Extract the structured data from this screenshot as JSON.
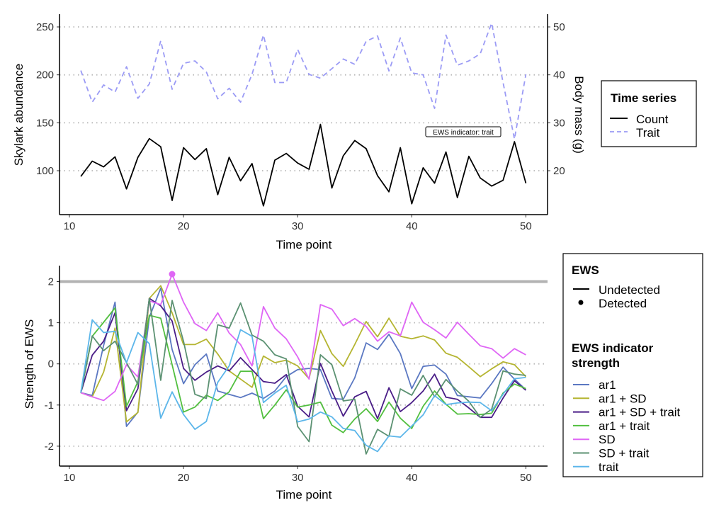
{
  "chart_data": [
    {
      "type": "line",
      "xlabel": "Time point",
      "ylabel": "Skylark abundance",
      "y2label": "Body mass (g)",
      "xlim": [
        10,
        52
      ],
      "ylim": [
        50,
        262
      ],
      "y2lim": [
        13,
        52
      ],
      "xticks": [
        10,
        20,
        30,
        40,
        50
      ],
      "yticks": [
        100,
        150,
        200,
        250
      ],
      "y2ticks": [
        20,
        30,
        40,
        50
      ],
      "grid": "horizontal dotted",
      "legend": {
        "title": "Time series",
        "position": "right",
        "items": [
          "Count",
          "Trait"
        ]
      },
      "annotation": "EWS indicator: trait",
      "x": [
        11,
        12,
        13,
        14,
        15,
        16,
        17,
        18,
        19,
        20,
        21,
        22,
        23,
        24,
        25,
        26,
        27,
        28,
        29,
        30,
        31,
        32,
        33,
        34,
        35,
        36,
        37,
        38,
        39,
        40,
        41,
        42,
        43,
        44,
        45,
        46,
        47,
        48,
        49,
        50
      ],
      "series": [
        {
          "name": "Count",
          "axis": "left",
          "color": "#000000",
          "dash": "solid",
          "values": [
            94,
            110,
            104,
            114.5,
            81,
            114,
            133.5,
            125,
            69,
            124,
            111.6,
            123,
            75,
            114,
            89.4,
            107.4,
            63.3,
            111,
            118,
            108,
            101.5,
            148.3,
            82,
            115.5,
            131.5,
            123,
            94.8,
            78,
            124,
            65.5,
            103,
            87,
            119.5,
            72,
            115,
            92.4,
            84,
            90,
            130.3,
            87
          ]
        },
        {
          "name": "Trait",
          "axis": "right",
          "color": "#9b9bf5",
          "dash": "dashed",
          "values": [
            40.9,
            34.3,
            37.9,
            36.4,
            41.7,
            35.1,
            38.1,
            47.1,
            37,
            42.4,
            42.9,
            40.6,
            35,
            37.2,
            34.3,
            40.1,
            48.3,
            38.4,
            38.4,
            45.3,
            40.1,
            39.3,
            41.3,
            43.3,
            42.2,
            47,
            48.1,
            40.8,
            47.7,
            40.4,
            40,
            33,
            48.3,
            42,
            42.9,
            44.4,
            50.8,
            38.4,
            26.6,
            40.1
          ]
        }
      ]
    },
    {
      "type": "line",
      "xlabel": "Time point",
      "ylabel": "Strength of EWS",
      "xlim": [
        10,
        52
      ],
      "ylim": [
        -2.45,
        2.38
      ],
      "xticks": [
        10,
        20,
        30,
        40,
        50
      ],
      "yticks": [
        -2,
        -1,
        0,
        1,
        2
      ],
      "grid": "horizontal dotted",
      "threshold": 2,
      "threshold_color": "#b3b3b3",
      "legend": {
        "position": "right",
        "ews_title": "EWS",
        "ews_items": [
          "Undetected",
          "Detected"
        ],
        "strength_title_lines": [
          "EWS indicator",
          "strength"
        ]
      },
      "x": [
        11,
        12,
        13,
        14,
        15,
        16,
        17,
        18,
        19,
        20,
        21,
        22,
        23,
        24,
        25,
        26,
        27,
        28,
        29,
        30,
        31,
        32,
        33,
        34,
        35,
        36,
        37,
        38,
        39,
        40,
        41,
        42,
        43,
        44,
        45,
        46,
        47,
        48,
        49,
        50
      ],
      "detected": [
        {
          "series": "SD",
          "x": 19,
          "y": 2.18
        }
      ],
      "series": [
        {
          "name": "ar1",
          "color": "#5b78c2",
          "values": [
            -0.7,
            -0.77,
            0.45,
            1.5,
            -1.52,
            -1.17,
            1.13,
            1.84,
            0.35,
            -0.48,
            -0.02,
            0.24,
            -0.66,
            -0.74,
            -0.82,
            -0.71,
            -0.84,
            -0.66,
            -0.31,
            -0.14,
            -0.11,
            -0.14,
            -0.84,
            -0.86,
            -0.34,
            0.51,
            0.35,
            0.72,
            0.25,
            -0.6,
            -0.06,
            -0.03,
            -0.25,
            -0.77,
            -0.8,
            -0.83,
            -0.48,
            -0.08,
            -0.37,
            -0.63
          ]
        },
        {
          "name": "ar1 + SD",
          "color": "#b5b531",
          "values": [
            -0.7,
            -0.8,
            -0.2,
            0.87,
            -1.41,
            -1.18,
            1.59,
            1.9,
            1.24,
            0.47,
            0.47,
            0.6,
            0.24,
            -0.17,
            -0.37,
            -0.57,
            0.19,
            0.03,
            0.09,
            -0.05,
            -0.36,
            0.81,
            0.25,
            -0.06,
            0.47,
            1.03,
            0.66,
            1.11,
            0.67,
            0.61,
            0.68,
            0.58,
            0.26,
            0.16,
            -0.07,
            -0.31,
            -0.12,
            0.05,
            -0.02,
            -0.31
          ]
        },
        {
          "name": "ar1 + SD + trait",
          "color": "#4a1d87",
          "values": [
            -0.7,
            0.21,
            0.55,
            1.24,
            -1.14,
            -0.6,
            1.59,
            1.41,
            1.04,
            -0.11,
            -0.4,
            -0.2,
            -0.05,
            -0.17,
            0.15,
            -0.14,
            -0.43,
            -0.47,
            -0.26,
            -1.03,
            -1.29,
            0.01,
            -0.66,
            -1.27,
            -0.8,
            -0.67,
            -1.33,
            -0.58,
            -1.16,
            -0.94,
            -0.66,
            -0.25,
            -0.81,
            -0.86,
            -1.07,
            -1.3,
            -1.3,
            -0.83,
            -0.41,
            -0.64
          ]
        },
        {
          "name": "ar1 + trait",
          "color": "#52bf3f",
          "values": [
            -0.7,
            0.67,
            1.01,
            1.36,
            -1.03,
            -0.43,
            1.18,
            1.11,
            -0.02,
            -1.17,
            -1.05,
            -0.76,
            -0.89,
            -0.68,
            -0.18,
            -0.18,
            -1.33,
            -1.0,
            -0.63,
            -1.05,
            -1.0,
            -0.93,
            -1.49,
            -1.67,
            -1.34,
            -1.09,
            -1.4,
            -0.93,
            -1.32,
            -1.57,
            -1.03,
            -0.66,
            -0.98,
            -1.22,
            -1.21,
            -1.23,
            -1.2,
            -0.71,
            -0.49,
            -0.6
          ]
        },
        {
          "name": "SD",
          "color": "#df66f5",
          "values": [
            -0.7,
            -0.8,
            -0.89,
            -0.67,
            -0.02,
            -0.32,
            1.53,
            1.44,
            2.18,
            1.5,
            0.98,
            0.81,
            1.24,
            0.75,
            0.47,
            -0.05,
            1.39,
            0.87,
            0.61,
            0.17,
            -0.37,
            1.44,
            1.33,
            0.93,
            1.1,
            0.91,
            0.55,
            0.78,
            0.68,
            1.5,
            1.01,
            0.83,
            0.63,
            1.01,
            0.72,
            0.44,
            0.37,
            0.14,
            0.37,
            0.22
          ]
        },
        {
          "name": "SD + trait",
          "color": "#5b9172",
          "values": [
            -0.7,
            0.68,
            0.32,
            0.55,
            0.03,
            -0.5,
            1.59,
            -0.4,
            1.54,
            0.55,
            -0.74,
            -0.84,
            0.95,
            0.87,
            1.48,
            0.7,
            0.55,
            0.22,
            0.12,
            -1.52,
            -1.89,
            0.22,
            -0.02,
            -0.9,
            -0.86,
            -2.19,
            -1.59,
            -1.76,
            -0.61,
            -0.76,
            -0.28,
            -0.8,
            -0.38,
            -0.66,
            -0.91,
            -1.3,
            -1.1,
            -0.17,
            -0.25,
            -0.28
          ]
        },
        {
          "name": "trait",
          "color": "#5cb6ea",
          "values": [
            -0.7,
            1.07,
            0.76,
            0.79,
            0.03,
            0.76,
            0.49,
            -1.32,
            -0.68,
            -1.23,
            -1.59,
            -1.4,
            -0.45,
            -0.05,
            0.83,
            0.67,
            -0.94,
            -0.71,
            -0.52,
            -1.41,
            -1.34,
            -1.17,
            -1.29,
            -1.57,
            -1.62,
            -1.98,
            -2.13,
            -1.75,
            -1.78,
            -1.51,
            -1.24,
            -0.77,
            -0.99,
            -0.95,
            -0.93,
            -0.94,
            -1.14,
            -0.74,
            -0.36,
            -0.33
          ]
        }
      ]
    }
  ]
}
